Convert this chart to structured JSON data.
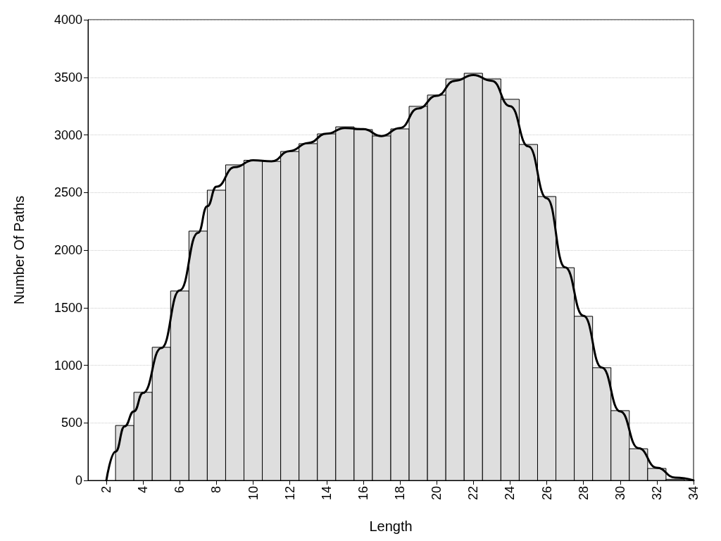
{
  "chart_data": {
    "type": "histogram",
    "xlabel": "Length",
    "ylabel": "Number Of Paths",
    "bins": [
      2.5,
      3.5,
      4.5,
      5.5,
      6.5,
      7.5,
      8.5,
      9.5,
      10.5,
      11.5,
      12.5,
      13.5,
      14.5,
      15.5,
      16.5,
      17.5,
      18.5,
      19.5,
      20.5,
      21.5,
      22.5,
      23.5,
      24.5,
      25.5,
      26.5,
      27.5,
      28.5,
      29.5,
      30.5,
      31.5,
      32.5,
      33.5
    ],
    "values": [
      477,
      765,
      1156,
      1645,
      2165,
      2520,
      2740,
      2780,
      2770,
      2856,
      2924,
      3009,
      3070,
      3046,
      2991,
      3052,
      3248,
      3346,
      3486,
      3535,
      3486,
      3309,
      2917,
      2465,
      1847,
      1425,
      979,
      606,
      275,
      104,
      10
    ],
    "color": "#dedede",
    "series": [
      {
        "type": "line",
        "color": "#000000",
        "x": [
          2,
          2.5,
          3,
          3.5,
          4,
          5,
          6,
          7,
          7.5,
          8,
          9,
          10,
          11,
          12,
          13,
          14,
          15,
          16,
          17,
          18,
          19,
          20,
          21,
          22,
          23,
          24,
          25,
          26,
          27,
          28,
          29,
          30,
          31,
          32,
          33,
          34
        ],
        "values": [
          0,
          250,
          470,
          600,
          760,
          1150,
          1650,
          2150,
          2380,
          2550,
          2720,
          2780,
          2770,
          2860,
          2930,
          3010,
          3060,
          3050,
          2990,
          3060,
          3230,
          3340,
          3470,
          3520,
          3470,
          3250,
          2900,
          2450,
          1850,
          1430,
          980,
          600,
          280,
          110,
          25,
          0
        ]
      }
    ],
    "marker": "none",
    "line_style": "solid",
    "xlim": [
      1,
      34
    ],
    "xticks": [
      2,
      4,
      6,
      8,
      10,
      12,
      14,
      16,
      18,
      20,
      22,
      24,
      26,
      28,
      30,
      32,
      34
    ],
    "ylim": [
      0,
      4000
    ],
    "yticks": [
      0,
      500,
      1000,
      1500,
      2000,
      2500,
      3000,
      3500,
      4000
    ],
    "grid": "y"
  }
}
